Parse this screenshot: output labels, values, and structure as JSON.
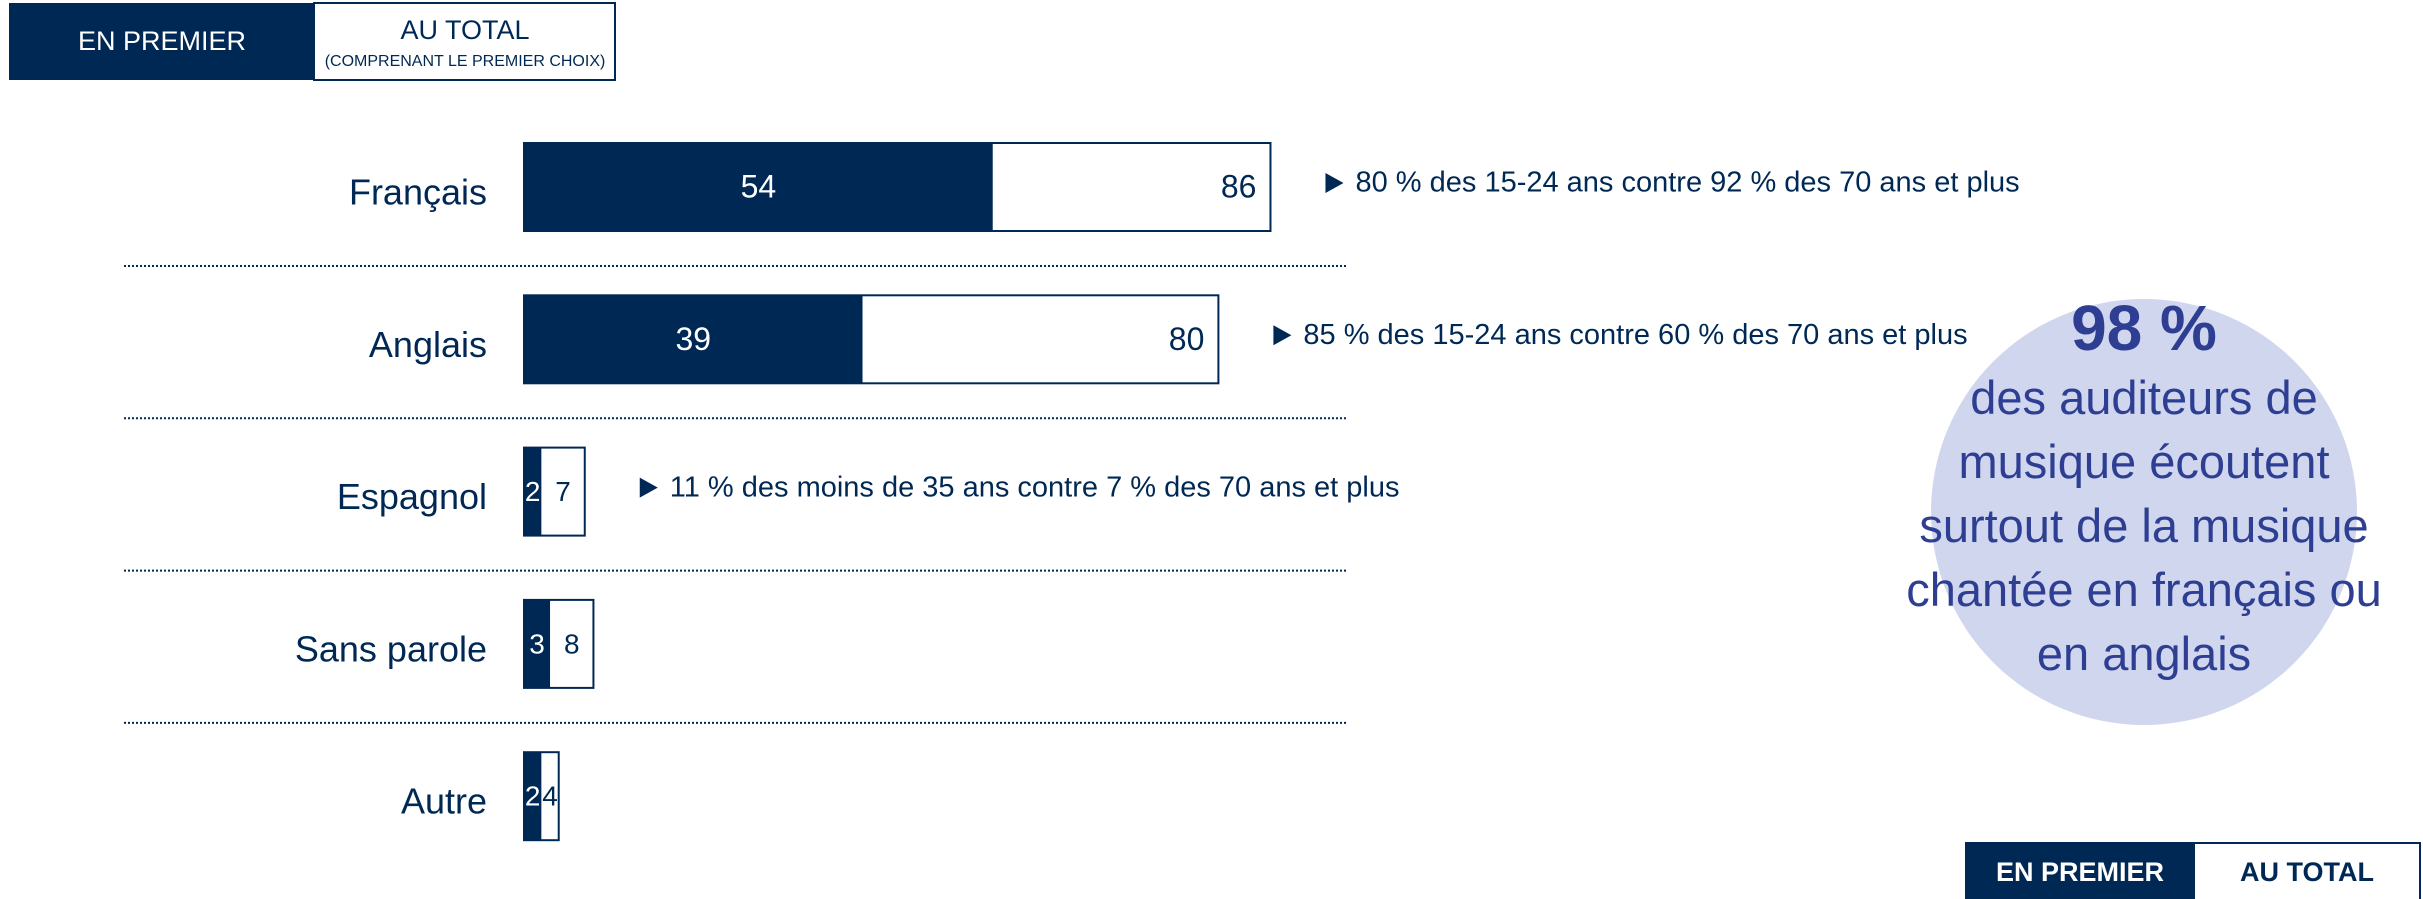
{
  "chart_data": {
    "type": "bar",
    "tabs": [
      {
        "label": "EN PREMIER"
      },
      {
        "label": "AU TOTAL",
        "sublabel": "(COMPRENANT LE PREMIER CHOIX)"
      }
    ],
    "categories": [
      "Français",
      "Anglais",
      "Espagnol",
      "Sans parole",
      "Autre"
    ],
    "series": [
      {
        "name": "EN PREMIER",
        "color": "#002855",
        "values": [
          54,
          39,
          2,
          3,
          2
        ]
      },
      {
        "name": "AU TOTAL",
        "color": "#ffffff",
        "values": [
          86,
          80,
          7,
          8,
          4
        ]
      }
    ],
    "notes": [
      "80 % des 15-24 ans contre 92 % des 70 ans et plus",
      "85 % des 15-24 ans contre 60 % des 70 ans et plus",
      "11 % des moins de 35 ans contre 7 % des 70 ans et plus",
      null,
      null
    ],
    "callout": {
      "headline": "98 %",
      "text": "des auditeurs de musique écoutent surtout de la musique chantée en français ou en anglais"
    }
  }
}
